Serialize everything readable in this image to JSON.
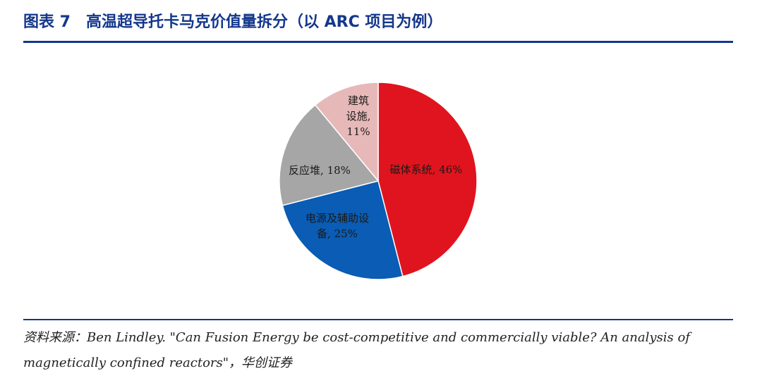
{
  "figure": {
    "number_label": "图表 7",
    "title": "高温超导托卡马克价值量拆分（以 ARC 项目为例）"
  },
  "chart_data": {
    "type": "pie",
    "title": "",
    "slices": [
      {
        "label": "磁体系统",
        "value": 46,
        "color": "#e0141e",
        "label_lines": [
          "磁体系统, 46%"
        ]
      },
      {
        "label": "电源及辅助设备",
        "value": 25,
        "color": "#0a5cb4",
        "label_lines": [
          "电源及辅助设",
          "备, 25%"
        ]
      },
      {
        "label": "反应堆",
        "value": 18,
        "color": "#a6a6a6",
        "label_lines": [
          "反应堆, 18%"
        ]
      },
      {
        "label": "建筑设施",
        "value": 11,
        "color": "#e6b9b8",
        "label_lines": [
          "建筑",
          "设施,",
          "11%"
        ]
      }
    ],
    "start": "12 o'clock",
    "direction": "clockwise",
    "value_unit": "%"
  },
  "source": {
    "line1": "资料来源：Ben Lindley. \"Can Fusion Energy be cost-competitive and commercially viable? An analysis of",
    "line2": "magnetically confined reactors\"，华创证券"
  }
}
